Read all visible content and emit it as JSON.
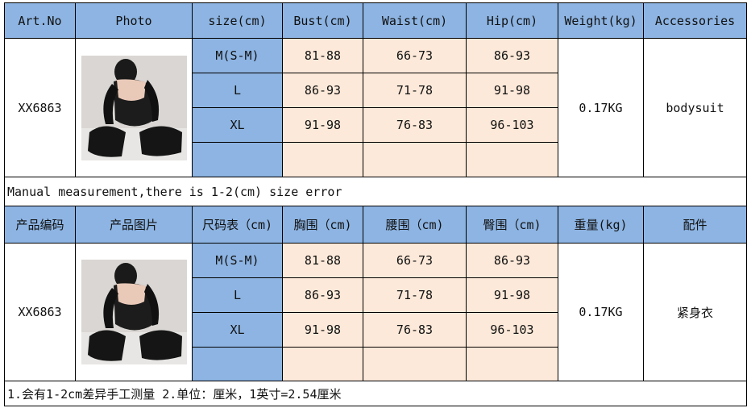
{
  "table1": {
    "headers": [
      "Art.No",
      "Photo",
      "size(cm)",
      "Bust(cm)",
      "Waist(cm)",
      "Hip(cm)",
      "Weight(kg)",
      "Accessories"
    ],
    "art_no": "XX6863",
    "rows": [
      {
        "size": "M(S-M)",
        "bust": "81-88",
        "waist": "66-73",
        "hip": "86-93"
      },
      {
        "size": "L",
        "bust": "86-93",
        "waist": "71-78",
        "hip": "91-98"
      },
      {
        "size": "XL",
        "bust": "91-98",
        "waist": "76-83",
        "hip": "96-103"
      }
    ],
    "weight": "0.17KG",
    "accessories": "bodysuit",
    "note": "Manual measurement,there is 1-2(cm) size error"
  },
  "table2": {
    "headers": [
      "产品编码",
      "产品图片",
      "尺码表（cm)",
      "胸围（cm)",
      "腰围（cm)",
      "臀围（cm)",
      "重量(kg)",
      "配件"
    ],
    "art_no": "XX6863",
    "rows": [
      {
        "size": "M(S-M)",
        "bust": "81-88",
        "waist": "66-73",
        "hip": "86-93"
      },
      {
        "size": "L",
        "bust": "86-93",
        "waist": "71-78",
        "hip": "91-98"
      },
      {
        "size": "XL",
        "bust": "91-98",
        "waist": "76-83",
        "hip": "96-103"
      }
    ],
    "weight": "0.17KG",
    "accessories": "紧身衣",
    "note": "1.会有1-2cm差异手工测量  2.单位：厘米，1英寸=2.54厘米"
  },
  "colors": {
    "header": "#8db4e2",
    "measure_cell": "#fde9d9"
  }
}
